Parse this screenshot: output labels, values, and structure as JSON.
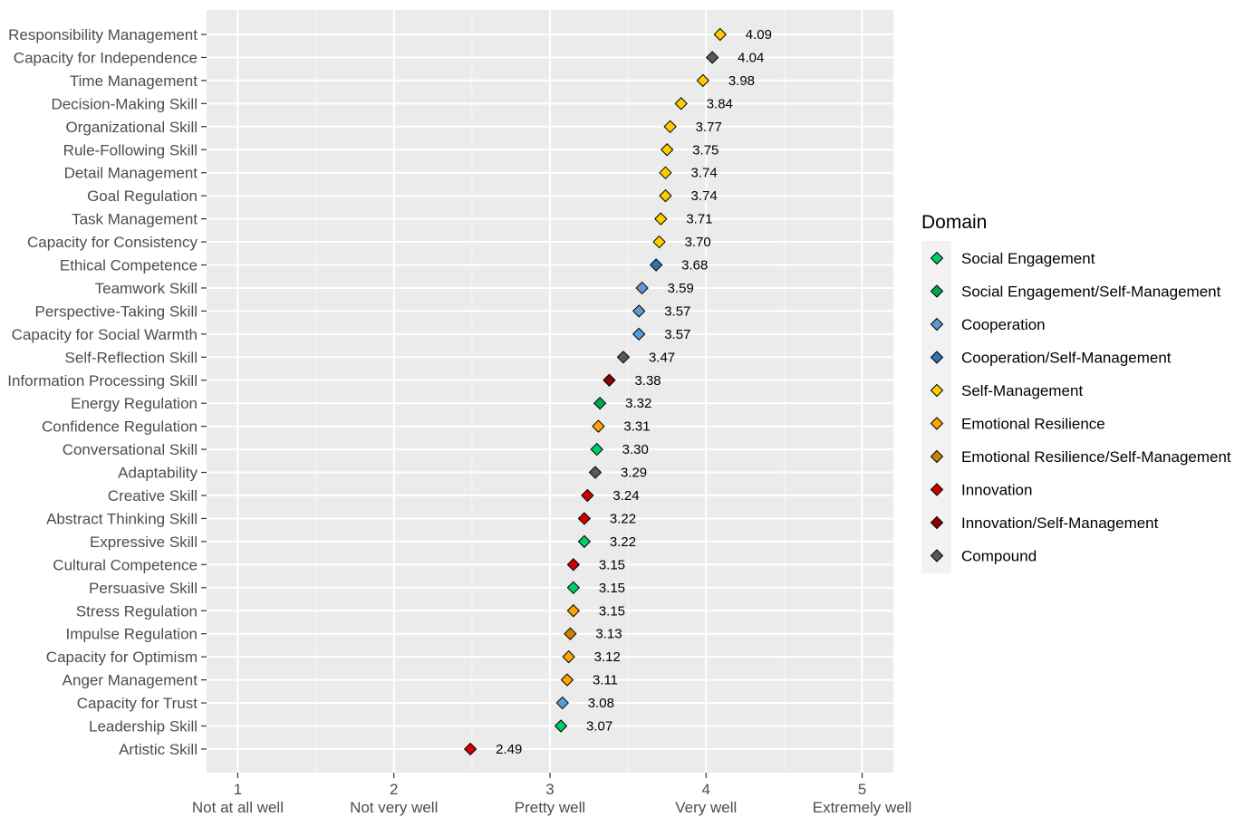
{
  "chart_data": {
    "type": "scatter",
    "orientation": "horizontal",
    "marker": "diamond",
    "xlim": [
      0.8,
      5.2
    ],
    "x_ticks": [
      1,
      2,
      3,
      4,
      5
    ],
    "x_tick_labels": [
      {
        "value": 1,
        "number": "1",
        "text": "Not at all well"
      },
      {
        "value": 2,
        "number": "2",
        "text": "Not very well"
      },
      {
        "value": 3,
        "number": "3",
        "text": "Pretty well"
      },
      {
        "value": 4,
        "number": "4",
        "text": "Very well"
      },
      {
        "value": 5,
        "number": "5",
        "text": "Extremely well"
      }
    ],
    "grid": true,
    "panel_background": "#ebebeb",
    "legend": {
      "title": "Domain",
      "placement": "right",
      "entries": [
        {
          "name": "Social Engagement",
          "color": "#00cc66"
        },
        {
          "name": "Social Engagement/Self-Management",
          "color": "#00a651"
        },
        {
          "name": "Cooperation",
          "color": "#5b9bd5"
        },
        {
          "name": "Cooperation/Self-Management",
          "color": "#2e75b6"
        },
        {
          "name": "Self-Management",
          "color": "#ffcc00"
        },
        {
          "name": "Emotional Resilience",
          "color": "#ffa500"
        },
        {
          "name": "Emotional Resilience/Self-Management",
          "color": "#cc8400"
        },
        {
          "name": "Innovation",
          "color": "#cc0000"
        },
        {
          "name": "Innovation/Self-Management",
          "color": "#8b0000"
        },
        {
          "name": "Compound",
          "color": "#595959"
        }
      ]
    },
    "points": [
      {
        "label": "Responsibility Management",
        "value": 4.09,
        "text": "4.09",
        "domain": "Self-Management"
      },
      {
        "label": "Capacity for Independence",
        "value": 4.04,
        "text": "4.04",
        "domain": "Compound"
      },
      {
        "label": "Time Management",
        "value": 3.98,
        "text": "3.98",
        "domain": "Self-Management"
      },
      {
        "label": "Decision-Making Skill",
        "value": 3.84,
        "text": "3.84",
        "domain": "Self-Management"
      },
      {
        "label": "Organizational Skill",
        "value": 3.77,
        "text": "3.77",
        "domain": "Self-Management"
      },
      {
        "label": "Rule-Following Skill",
        "value": 3.75,
        "text": "3.75",
        "domain": "Self-Management"
      },
      {
        "label": "Detail Management",
        "value": 3.74,
        "text": "3.74",
        "domain": "Self-Management"
      },
      {
        "label": "Goal Regulation",
        "value": 3.74,
        "text": "3.74",
        "domain": "Self-Management"
      },
      {
        "label": "Task Management",
        "value": 3.71,
        "text": "3.71",
        "domain": "Self-Management"
      },
      {
        "label": "Capacity for Consistency",
        "value": 3.7,
        "text": "3.70",
        "domain": "Self-Management"
      },
      {
        "label": "Ethical Competence",
        "value": 3.68,
        "text": "3.68",
        "domain": "Cooperation/Self-Management"
      },
      {
        "label": "Teamwork Skill",
        "value": 3.59,
        "text": "3.59",
        "domain": "Cooperation"
      },
      {
        "label": "Perspective-Taking Skill",
        "value": 3.57,
        "text": "3.57",
        "domain": "Cooperation"
      },
      {
        "label": "Capacity for Social Warmth",
        "value": 3.57,
        "text": "3.57",
        "domain": "Cooperation"
      },
      {
        "label": "Self-Reflection Skill",
        "value": 3.47,
        "text": "3.47",
        "domain": "Compound"
      },
      {
        "label": "Information Processing Skill",
        "value": 3.38,
        "text": "3.38",
        "domain": "Innovation/Self-Management"
      },
      {
        "label": "Energy Regulation",
        "value": 3.32,
        "text": "3.32",
        "domain": "Social Engagement/Self-Management"
      },
      {
        "label": "Confidence Regulation",
        "value": 3.31,
        "text": "3.31",
        "domain": "Emotional Resilience"
      },
      {
        "label": "Conversational Skill",
        "value": 3.3,
        "text": "3.30",
        "domain": "Social Engagement"
      },
      {
        "label": "Adaptability",
        "value": 3.29,
        "text": "3.29",
        "domain": "Compound"
      },
      {
        "label": "Creative Skill",
        "value": 3.24,
        "text": "3.24",
        "domain": "Innovation"
      },
      {
        "label": "Abstract Thinking Skill",
        "value": 3.22,
        "text": "3.22",
        "domain": "Innovation"
      },
      {
        "label": "Expressive Skill",
        "value": 3.22,
        "text": "3.22",
        "domain": "Social Engagement"
      },
      {
        "label": "Cultural Competence",
        "value": 3.15,
        "text": "3.15",
        "domain": "Innovation"
      },
      {
        "label": "Persuasive Skill",
        "value": 3.15,
        "text": "3.15",
        "domain": "Social Engagement"
      },
      {
        "label": "Stress Regulation",
        "value": 3.15,
        "text": "3.15",
        "domain": "Emotional Resilience"
      },
      {
        "label": "Impulse Regulation",
        "value": 3.13,
        "text": "3.13",
        "domain": "Emotional Resilience/Self-Management"
      },
      {
        "label": "Capacity for Optimism",
        "value": 3.12,
        "text": "3.12",
        "domain": "Emotional Resilience"
      },
      {
        "label": "Anger Management",
        "value": 3.11,
        "text": "3.11",
        "domain": "Emotional Resilience"
      },
      {
        "label": "Capacity for Trust",
        "value": 3.08,
        "text": "3.08",
        "domain": "Cooperation"
      },
      {
        "label": "Leadership Skill",
        "value": 3.07,
        "text": "3.07",
        "domain": "Social Engagement"
      },
      {
        "label": "Artistic Skill",
        "value": 2.49,
        "text": "2.49",
        "domain": "Innovation"
      }
    ]
  }
}
